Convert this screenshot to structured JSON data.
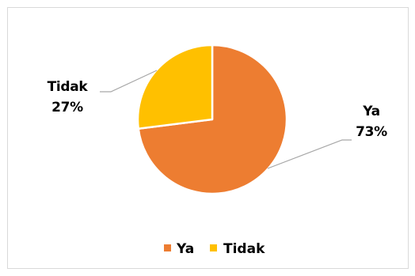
{
  "chart_data": {
    "type": "pie",
    "slices": [
      {
        "label": "Ya",
        "value": 73,
        "value_label": "73%",
        "color": "#ED7D31"
      },
      {
        "label": "Tidak",
        "value": 27,
        "value_label": "27%",
        "color": "#FFC000"
      }
    ],
    "legend": {
      "placement": "bottom",
      "entries": [
        "Ya",
        "Tidak"
      ]
    },
    "leader_line_color": "#a6a6a6"
  }
}
